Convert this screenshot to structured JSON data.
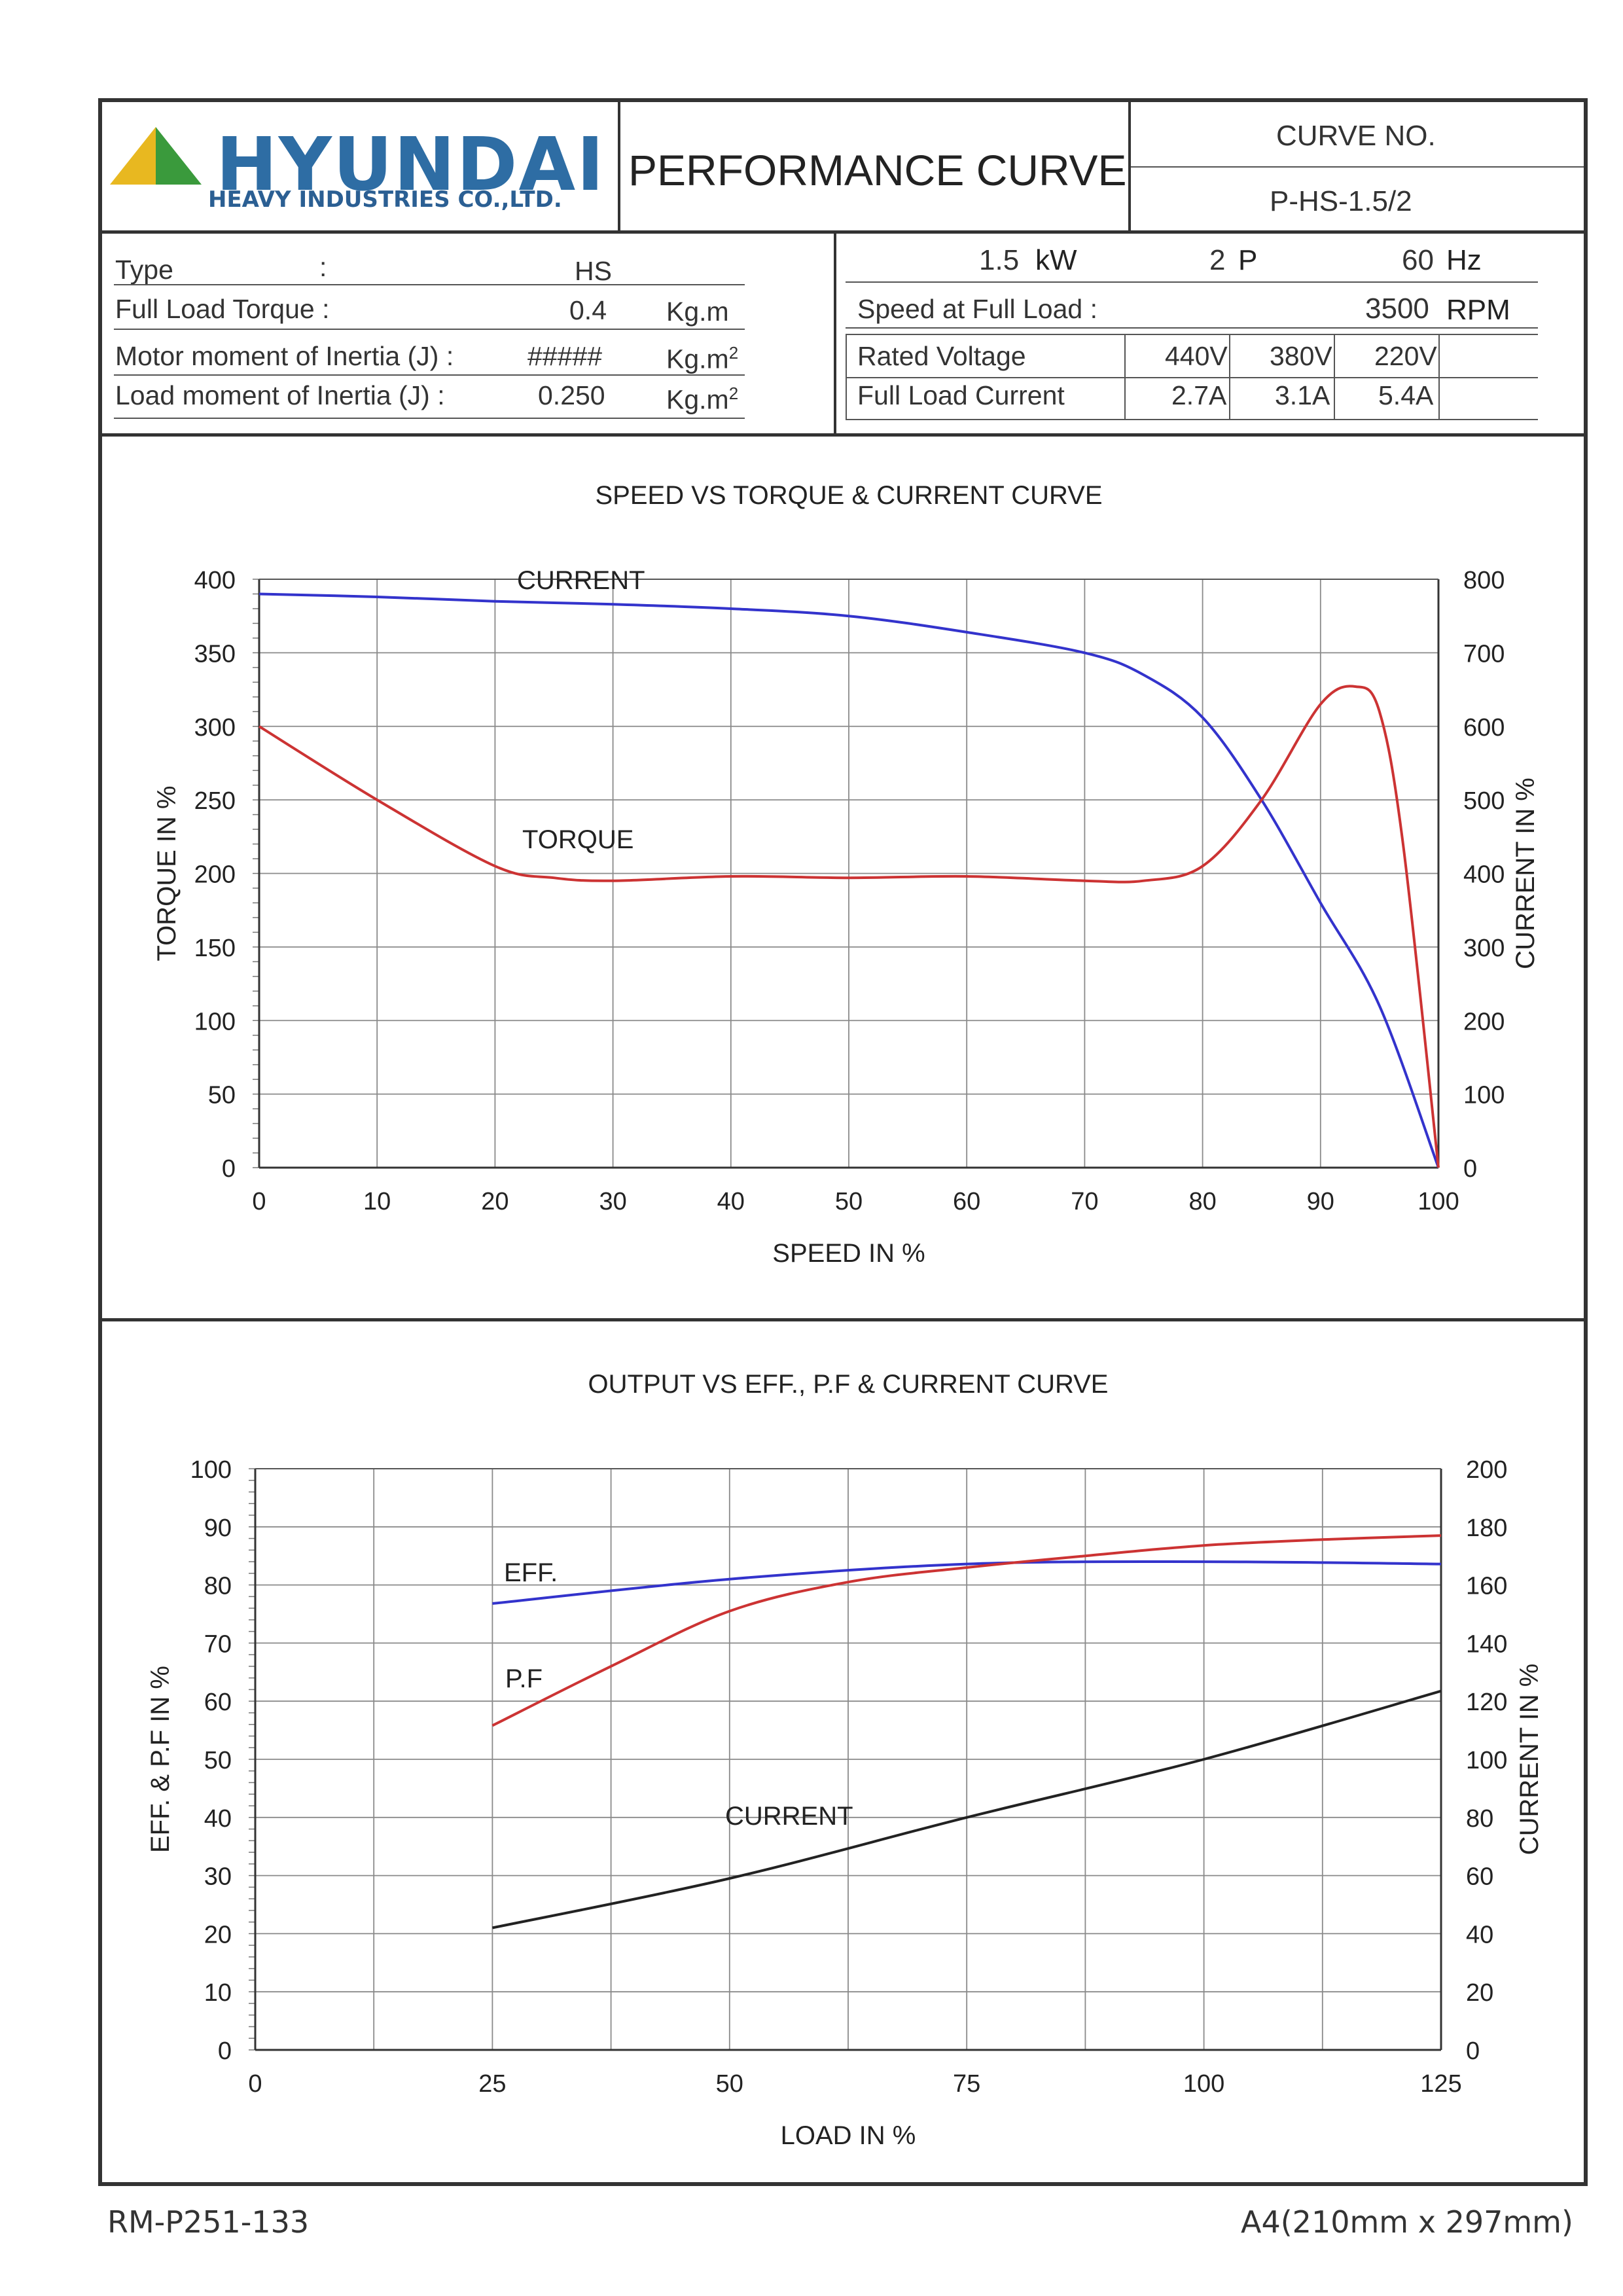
{
  "header": {
    "logo": {
      "brand": "HYUNDAI",
      "sub": "HEAVY INDUSTRIES CO.,LTD.",
      "colors": {
        "triangle_left": "#e8b820",
        "triangle_right": "#3a9a3c",
        "text": "#2e6da4"
      }
    },
    "title": "PERFORMANCE CURVE",
    "curve_no_label": "CURVE NO.",
    "curve_no": "P-HS-1.5/2"
  },
  "specs_left": {
    "type_label": "Type",
    "type_colon": ":",
    "type_value": "HS",
    "torque_label": "Full Load Torque :",
    "torque_value": "0.4",
    "torque_unit": "Kg.m",
    "motor_inertia_label": "Motor moment of Inertia (J) :",
    "motor_inertia_value": "#####",
    "motor_inertia_unit": "Kg.m",
    "load_inertia_label": "Load moment of Inertia (J) :",
    "load_inertia_value": "0.250",
    "load_inertia_unit": "Kg.m",
    "sup": "2"
  },
  "specs_right": {
    "power_value": "1.5",
    "power_unit": "kW",
    "poles_value": "2",
    "poles_unit": "P",
    "freq_value": "60",
    "freq_unit": "Hz",
    "speed_label": "Speed at Full Load :",
    "speed_value": "3500",
    "speed_unit": "RPM",
    "voltage_label": "Rated Voltage",
    "voltages": [
      "440V",
      "380V",
      "220V"
    ],
    "current_label": "Full Load Current",
    "currents": [
      "2.7A",
      "3.1A",
      "5.4A"
    ]
  },
  "chart_data": [
    {
      "type": "line",
      "title": "SPEED VS TORQUE & CURRENT CURVE",
      "xlabel": "SPEED IN %",
      "ylabel": "TORQUE IN %",
      "y2label": "CURRENT IN %",
      "xlim": [
        0,
        100
      ],
      "ylim": [
        0,
        400
      ],
      "y2lim": [
        0,
        800
      ],
      "x_ticks": [
        "0",
        "10",
        "20",
        "30",
        "40",
        "50",
        "60",
        "70",
        "80",
        "90",
        "100"
      ],
      "y_ticks": [
        "0",
        "50",
        "100",
        "150",
        "200",
        "250",
        "300",
        "350",
        "400"
      ],
      "y2_ticks": [
        "0",
        "100",
        "200",
        "300",
        "400",
        "500",
        "600",
        "700",
        "800"
      ],
      "grid": true,
      "series": [
        {
          "name": "CURRENT",
          "axis": "right",
          "color": "#3333cc",
          "x": [
            0,
            10,
            20,
            30,
            40,
            50,
            60,
            70,
            75,
            80,
            85,
            90,
            95,
            100
          ],
          "y": [
            780,
            776,
            770,
            766,
            760,
            750,
            728,
            700,
            670,
            612,
            500,
            360,
            220,
            0
          ]
        },
        {
          "name": "TORQUE",
          "axis": "left",
          "color": "#cc3333",
          "x": [
            0,
            10,
            20,
            25,
            30,
            40,
            50,
            60,
            70,
            75,
            80,
            85,
            90,
            93,
            95,
            97,
            100
          ],
          "y": [
            300,
            250,
            205,
            197,
            195,
            198,
            197,
            198,
            195,
            195,
            205,
            250,
            315,
            327,
            310,
            220,
            0
          ]
        }
      ]
    },
    {
      "type": "line",
      "title": "OUTPUT VS EFF., P.F & CURRENT CURVE",
      "xlabel": "LOAD IN %",
      "ylabel": "EFF. & P.F IN %",
      "y2label": "CURRENT IN %",
      "xlim": [
        0,
        125
      ],
      "ylim": [
        0,
        100
      ],
      "y2lim": [
        0,
        200
      ],
      "x_ticks": [
        "0",
        "25",
        "50",
        "75",
        "100",
        "125"
      ],
      "y_ticks": [
        "0",
        "10",
        "20",
        "30",
        "40",
        "50",
        "60",
        "70",
        "80",
        "90",
        "100"
      ],
      "y2_ticks": [
        "0",
        "20",
        "40",
        "60",
        "80",
        "100",
        "120",
        "140",
        "160",
        "180",
        "200"
      ],
      "grid": true,
      "series": [
        {
          "name": "EFF.",
          "axis": "left",
          "color": "#3333cc",
          "x": [
            25,
            50,
            75,
            100,
            125
          ],
          "y": [
            76.8,
            81,
            83.6,
            84,
            83.6
          ]
        },
        {
          "name": "P.F",
          "axis": "left",
          "color": "#cc3333",
          "x": [
            25,
            37.5,
            50,
            62.5,
            75,
            87.5,
            100,
            112.5,
            125
          ],
          "y": [
            55.8,
            66,
            75.5,
            80.5,
            83,
            85,
            86.8,
            87.8,
            88.5
          ]
        },
        {
          "name": "CURRENT",
          "axis": "right",
          "color": "#222222",
          "x": [
            25,
            50,
            75,
            100,
            125
          ],
          "y": [
            42,
            59,
            80,
            100,
            123.5
          ]
        }
      ]
    }
  ],
  "footer": {
    "left": "RM-P251-133",
    "right": "A4(210mm x 297mm)"
  }
}
